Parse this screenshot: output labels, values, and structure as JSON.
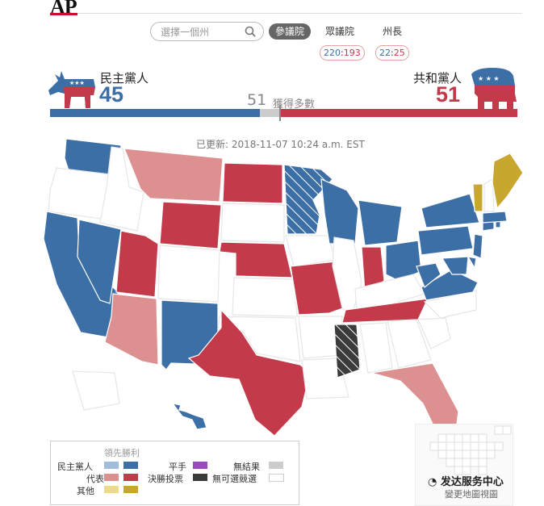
{
  "brand": {
    "logo": "AP"
  },
  "search": {
    "placeholder": "選擇一個州"
  },
  "tabs": [
    {
      "label": "參議院",
      "active": true
    },
    {
      "label": "眾議院",
      "active": false
    },
    {
      "label": "州長",
      "active": false
    }
  ],
  "house_tally": {
    "dem": "220",
    "sep": ":",
    "rep": "193"
  },
  "governor_tally": {
    "dem": "22",
    "sep": ":",
    "rep": "25"
  },
  "senate": {
    "dem_label": "民主黨人",
    "dem_seats": "45",
    "rep_label": "共和黨人",
    "rep_seats": "51",
    "needed": "51",
    "needed_label": "獲得多數"
  },
  "updated": "已更新: 2018-11-07 10:24 a.m. EST",
  "legend": {
    "title": "領先勝利",
    "dem": "民主黨人",
    "rep": "代表",
    "other": "其他",
    "tie": "平手",
    "runoff": "決勝投票",
    "no_result": "無結果",
    "no_election": "無可選競選"
  },
  "colors": {
    "dem": "#3d6fa7",
    "dem_light": "#a3bcd9",
    "rep": "#c33a4a",
    "rep_light": "#dc9090",
    "other": "#c8a72e",
    "other_light": "#ecdc8a",
    "tie": "#9b4bbd",
    "runoff": "#3b3b3b",
    "no_result": "#cccccc",
    "no_election": "#ffffff"
  },
  "map": {
    "results": {
      "WA": "dem",
      "CA": "dem",
      "NV": "dem",
      "MN": "dem",
      "WI": "dem",
      "MI": "dem",
      "OH": "dem",
      "PA": "dem",
      "NY": "dem",
      "NJ": "dem",
      "DE": "dem",
      "MD": "dem",
      "VA": "dem",
      "WV": "dem",
      "NM": "dem",
      "HI": "dem",
      "MA": "dem",
      "RI": "dem",
      "CT": "dem",
      "MT": "rep_light",
      "AZ": "rep_light",
      "FL": "rep_light",
      "ND": "rep",
      "WY": "rep",
      "UT": "rep",
      "NE": "rep",
      "MO": "rep",
      "IN": "rep",
      "TN": "rep",
      "TX": "rep",
      "MS": "runoff",
      "VT": "other",
      "ME": "other"
    }
  },
  "map_link": "變更地圖視圖",
  "watermark": "发达服务中心"
}
